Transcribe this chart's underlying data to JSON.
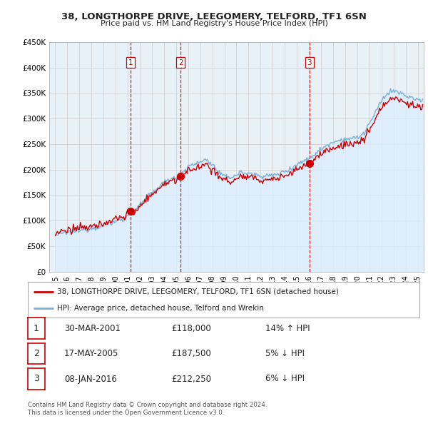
{
  "title": "38, LONGTHORPE DRIVE, LEEGOMERY, TELFORD, TF1 6SN",
  "subtitle": "Price paid vs. HM Land Registry's House Price Index (HPI)",
  "legend_label_red": "38, LONGTHORPE DRIVE, LEEGOMERY, TELFORD, TF1 6SN (detached house)",
  "legend_label_blue": "HPI: Average price, detached house, Telford and Wrekin",
  "footnote1": "Contains HM Land Registry data © Crown copyright and database right 2024.",
  "footnote2": "This data is licensed under the Open Government Licence v3.0.",
  "transactions": [
    {
      "num": 1,
      "date": "30-MAR-2001",
      "price": "£118,000",
      "change": "14% ↑ HPI"
    },
    {
      "num": 2,
      "date": "17-MAY-2005",
      "price": "£187,500",
      "change": "5% ↓ HPI"
    },
    {
      "num": 3,
      "date": "08-JAN-2016",
      "price": "£212,250",
      "change": "6% ↓ HPI"
    }
  ],
  "vline_dates": [
    2001.25,
    2005.375,
    2016.03
  ],
  "transaction_prices": [
    118000,
    187500,
    212250
  ],
  "transaction_years": [
    2001.25,
    2005.375,
    2016.03
  ],
  "ylim": [
    0,
    450000
  ],
  "yticks": [
    0,
    50000,
    100000,
    150000,
    200000,
    250000,
    300000,
    350000,
    400000,
    450000
  ],
  "xlim": [
    1994.5,
    2025.5
  ],
  "xticks": [
    1995,
    1996,
    1997,
    1998,
    1999,
    2000,
    2001,
    2002,
    2003,
    2004,
    2005,
    2006,
    2007,
    2008,
    2009,
    2010,
    2011,
    2012,
    2013,
    2014,
    2015,
    2016,
    2017,
    2018,
    2019,
    2020,
    2021,
    2022,
    2023,
    2024,
    2025
  ],
  "red_color": "#cc0000",
  "blue_color": "#7bafd4",
  "blue_fill": "#ddeeff",
  "vline_color": "#cc0000",
  "grid_color": "#cccccc",
  "background_color": "#ffffff",
  "chart_bg": "#e8f0f8"
}
